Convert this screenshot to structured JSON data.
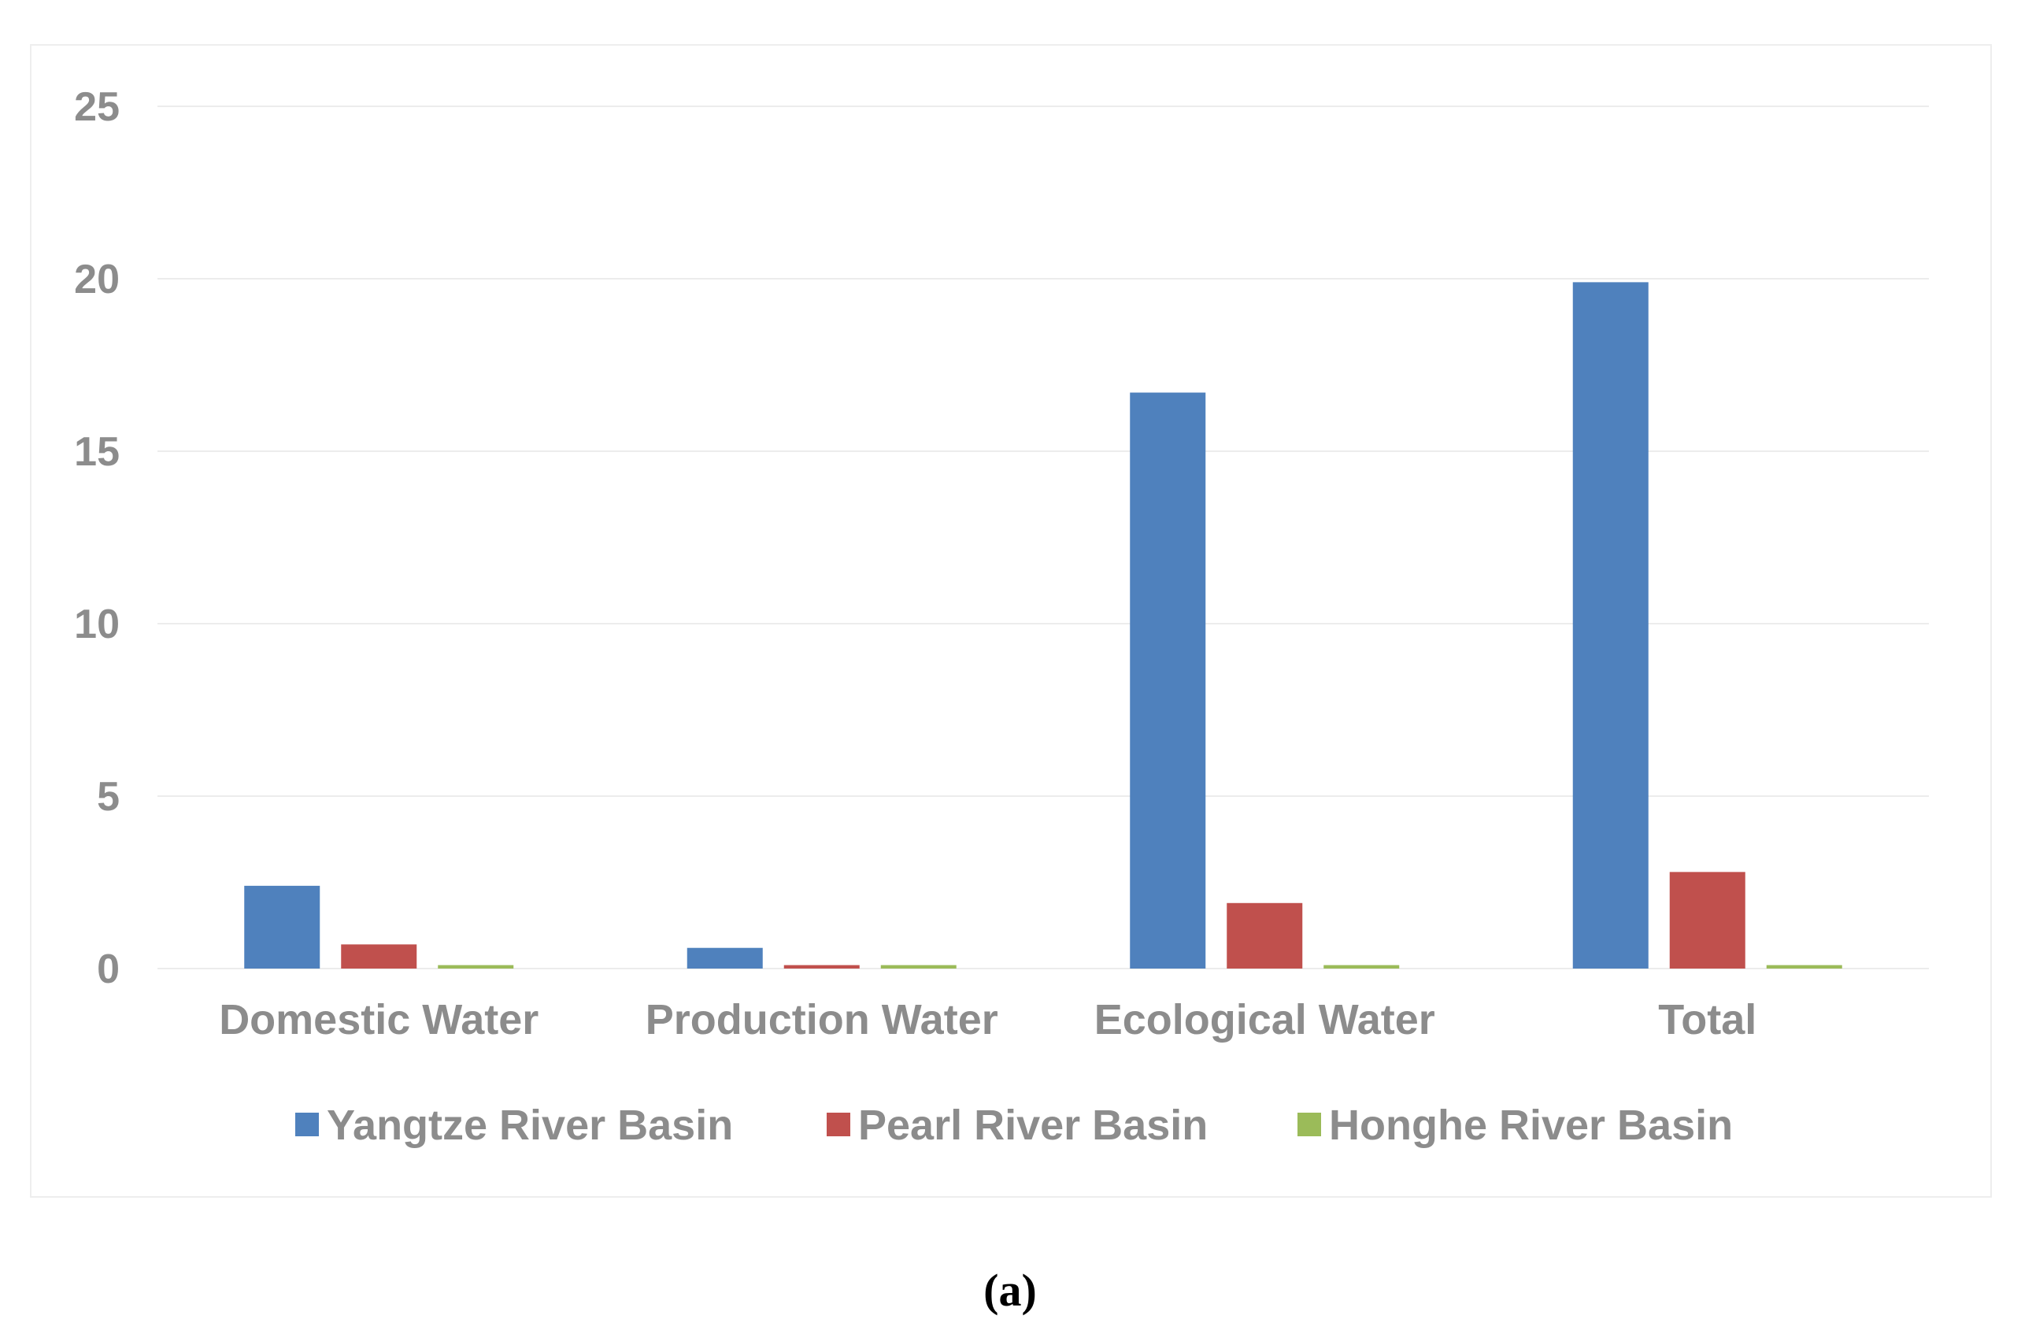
{
  "chart_data": {
    "type": "bar",
    "title": "",
    "xlabel": "",
    "ylabel": "",
    "categories": [
      "Domestic Water",
      "Production Water",
      "Ecological Water",
      "Total"
    ],
    "series": [
      {
        "name": "Yangtze River Basin",
        "color": "#4f81bd",
        "values": [
          2.4,
          0.6,
          16.7,
          19.9
        ]
      },
      {
        "name": "Pearl River Basin",
        "color": "#c0504d",
        "values": [
          0.7,
          0.1,
          1.9,
          2.8
        ]
      },
      {
        "name": "Honghe River Basin",
        "color": "#9bbb59",
        "values": [
          0.1,
          0.1,
          0.1,
          0.1
        ]
      }
    ],
    "ylim": [
      0,
      25
    ],
    "yticks": [
      0,
      5,
      10,
      15,
      20,
      25
    ],
    "ytick_labels": [
      "0",
      "5",
      "10",
      "15",
      "20",
      "25"
    ],
    "grid": true,
    "legend_position": "bottom"
  },
  "caption": "(a)"
}
